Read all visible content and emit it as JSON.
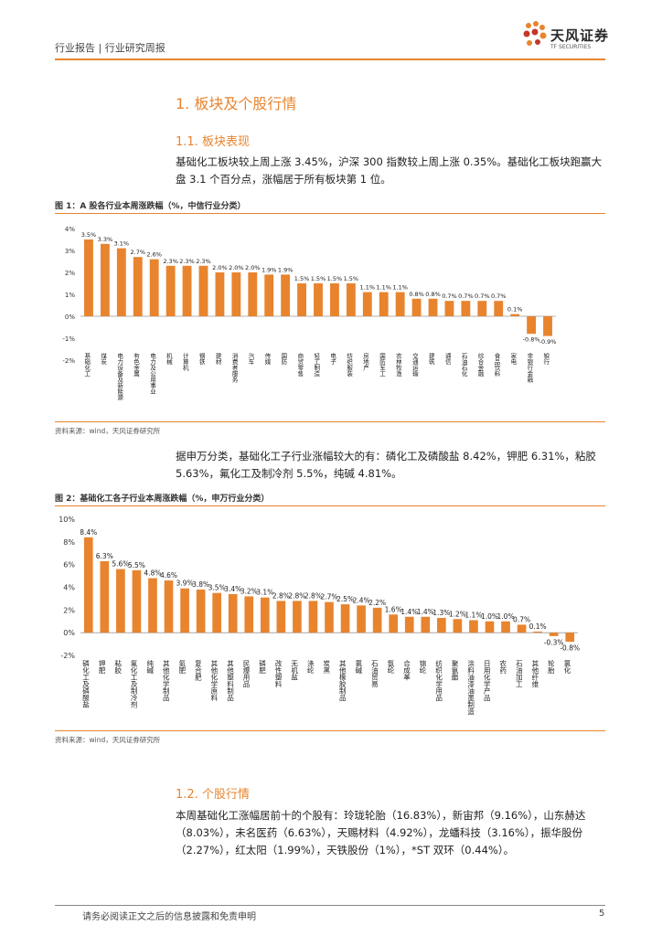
{
  "header": {
    "tag": "行业报告 | 行业研究周报"
  },
  "logo": {
    "cn": "天风证券",
    "en": "TF SECURITIES"
  },
  "section1": {
    "title": "1. 板块及个股行情"
  },
  "section11": {
    "title": "1.1. 板块表现",
    "para1": "基础化工板块较上周上涨 3.45%，沪深 300 指数较上周上涨 0.35%。基础化工板块跑赢大盘 3.1 个百分点，涨幅居于所有板块第 1 位。",
    "para2": "据申万分类，基础化工子行业涨幅较大的有：磷化工及磷酸盐 8.42%，钾肥 6.31%，粘胶 5.63%，氟化工及制冷剂 5.5%，纯碱 4.81%。"
  },
  "figure1": {
    "title": "图 1：A 股各行业本周涨跌幅（%，中信行业分类）",
    "source": "资料来源：wind，天风证券研究所"
  },
  "figure2": {
    "title": "图 2：基础化工各子行业本周涨跌幅（%，申万行业分类）",
    "source": "资料来源：wind，天风证券研究所"
  },
  "section12": {
    "title": "1.2. 个股行情",
    "para": "本周基础化工涨幅居前十的个股有：玲珑轮胎（16.83%），新宙邦（9.16%），山东赫达（8.03%），未名医药（6.63%），天赐材料（4.92%），龙蟠科技（3.16%），振华股份（2.27%），红太阳（1.99%），天铁股份（1%），*ST 双环（0.44%）。"
  },
  "footer": {
    "text": "请务必阅读正文之后的信息披露和免责申明",
    "page": "5"
  },
  "colors": {
    "accent": "#E8842E",
    "bar": "#E8842E"
  },
  "chart_data": [
    {
      "type": "bar",
      "title": "图 1：A 股各行业本周涨跌幅（%，中信行业分类）",
      "categories": [
        "基础化工",
        "煤炭",
        "电力设备及新能源",
        "有色金属",
        "电力及公用事业",
        "机械",
        "计算机",
        "钢铁",
        "建材",
        "消费者服务",
        "汽车",
        "传媒",
        "国防",
        "商贸零售",
        "轻工制造",
        "电子",
        "纺织服装",
        "房地产",
        "国防军工",
        "农林牧渔",
        "交通运输",
        "建筑",
        "通信",
        "石油石化",
        "综合金融",
        "食品饮料",
        "家电",
        "非银行金融",
        "银行"
      ],
      "values": [
        3.5,
        3.3,
        3.1,
        2.7,
        2.6,
        2.3,
        2.3,
        2.3,
        2.0,
        2.0,
        2.0,
        1.9,
        1.9,
        1.5,
        1.5,
        1.5,
        1.5,
        1.1,
        1.1,
        1.1,
        0.8,
        0.8,
        0.7,
        0.7,
        0.7,
        0.7,
        0.1,
        -0.8,
        -0.9
      ],
      "ylim": [
        -2,
        4
      ],
      "yticks": [
        "-2%",
        "-1%",
        "0%",
        "1%",
        "2%",
        "3%",
        "4%"
      ]
    },
    {
      "type": "bar",
      "title": "图 2：基础化工各子行业本周涨跌幅（%，申万行业分类）",
      "categories": [
        "磷化工及磷酸盐",
        "钾肥",
        "粘胶",
        "氟化工及制冷剂",
        "纯碱",
        "其他化学制品",
        "氮肥",
        "复合肥",
        "其他化学原料",
        "其他塑料制品",
        "民爆用品",
        "磷肥",
        "改性塑料",
        "无机盐",
        "涤纶",
        "炭黑",
        "其他橡胶制品",
        "氯碱",
        "石油贸易",
        "氨纶",
        "合成革",
        "锦纶",
        "纺织化学用品",
        "聚氨酯",
        "涂料油漆油墨制造",
        "日用化学产品",
        "农药",
        "石油加工",
        "其他纤维",
        "轮胎",
        "氯化"
      ],
      "values": [
        8.4,
        6.3,
        5.6,
        5.5,
        4.8,
        4.6,
        3.9,
        3.8,
        3.5,
        3.4,
        3.2,
        3.1,
        2.8,
        2.8,
        2.8,
        2.7,
        2.5,
        2.4,
        2.2,
        1.6,
        1.4,
        1.4,
        1.3,
        1.2,
        1.1,
        1.0,
        1.0,
        0.7,
        0.1,
        -0.3,
        -0.8
      ],
      "ylim": [
        -2,
        10
      ],
      "yticks": [
        "-2%",
        "0%",
        "2%",
        "4%",
        "6%",
        "8%",
        "10%"
      ]
    }
  ]
}
